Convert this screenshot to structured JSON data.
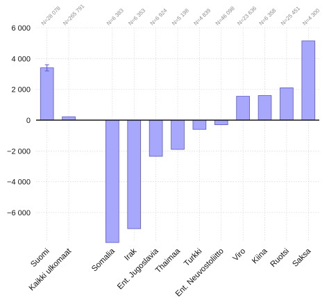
{
  "chart_data": {
    "type": "bar",
    "categories": [
      "Suomi",
      "Kaikki ulkomaat",
      "",
      "Somalia",
      "Irak",
      "Ent. Jugoslavia",
      "Thaimaa",
      "Turkki",
      "Ent. Neuvostoliitto",
      "Viro",
      "Kiina",
      "Ruotsi",
      "Saksa"
    ],
    "values": [
      3400,
      220,
      null,
      -7950,
      -7050,
      -2350,
      -1900,
      -600,
      -300,
      1550,
      1600,
      2100,
      5150
    ],
    "n_labels": [
      "N=28 078",
      "N=265 791",
      "",
      "N=6 383",
      "N=6 353",
      "N=6 924",
      "N=5 198",
      "N=4 839",
      "N=46 098",
      "N=23 636",
      "N=6 358",
      "N=25 451",
      "N=4 300"
    ],
    "error_bar": {
      "category": "Suomi",
      "low": 3200,
      "high": 3600
    },
    "ylim": [
      -7900,
      6000
    ],
    "yticks": [
      6000,
      4000,
      2000,
      0,
      -2000,
      -4000,
      -6000
    ],
    "ytick_labels": [
      "6 000",
      "4 000",
      "2 000",
      "0",
      "−2 000",
      "−4 000",
      "−6 000"
    ],
    "title": "",
    "xlabel": "",
    "ylabel": "",
    "grid": true,
    "colors": {
      "bar_fill": "#a7a7fb",
      "bar_edge": "#5858c8",
      "zero_line": "#000000",
      "grid": "#cfcfcf"
    }
  }
}
